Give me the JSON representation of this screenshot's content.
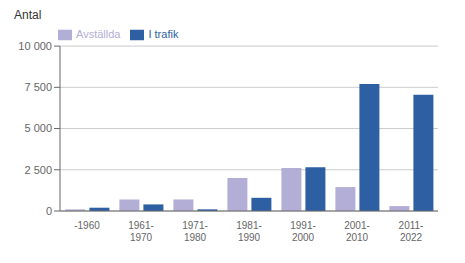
{
  "chart_data": {
    "type": "bar",
    "ylabel": "Antal",
    "categories": [
      "-1960",
      "1961-\n1970",
      "1971-\n1980",
      "1981-\n1990",
      "1991-\n2000",
      "2001-\n2010",
      "2011-\n2022"
    ],
    "series": [
      {
        "name": "Avställda",
        "color": "#b3aed6",
        "values": [
          100,
          700,
          700,
          2000,
          2600,
          1450,
          300
        ]
      },
      {
        "name": "I trafik",
        "color": "#2e5fa3",
        "values": [
          200,
          400,
          100,
          800,
          2650,
          7700,
          7050
        ]
      }
    ],
    "ylim": [
      0,
      10000
    ],
    "yticks": [
      0,
      {
        "value": 2500,
        "label": "2 500"
      },
      {
        "value": 5000,
        "label": "5 000"
      },
      {
        "value": 7500,
        "label": "7 500"
      },
      {
        "value": 10000,
        "label": "10 000"
      }
    ],
    "grid": true,
    "legend": "upper left"
  }
}
